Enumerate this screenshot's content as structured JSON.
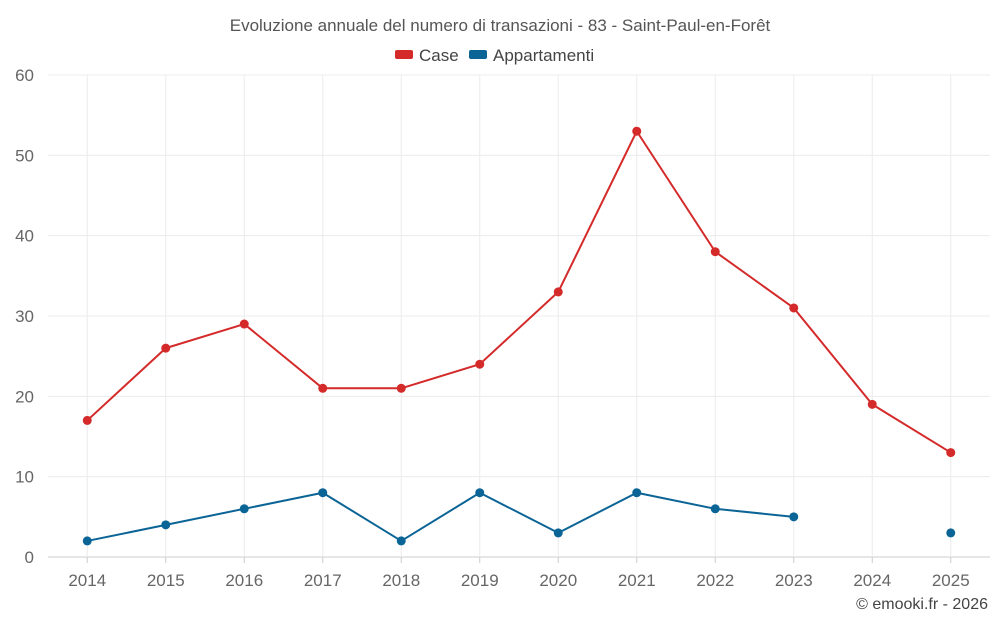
{
  "chart_data": {
    "type": "line",
    "title": "Evoluzione annuale del numero di transazioni - 83 - Saint-Paul-en-Forêt",
    "categories": [
      "2014",
      "2015",
      "2016",
      "2017",
      "2018",
      "2019",
      "2020",
      "2021",
      "2022",
      "2023",
      "2024",
      "2025"
    ],
    "ylim": [
      0,
      60
    ],
    "yticks": [
      0,
      10,
      20,
      30,
      40,
      50,
      60
    ],
    "grid": true,
    "legend_position": "top-center",
    "series": [
      {
        "name": "Case",
        "color": "#d42a2a",
        "values": [
          17,
          26,
          29,
          21,
          21,
          24,
          33,
          53,
          38,
          31,
          19,
          13
        ]
      },
      {
        "name": "Appartamenti",
        "color": "#0b6496",
        "values": [
          2,
          4,
          6,
          8,
          2,
          8,
          3,
          8,
          6,
          5,
          null,
          3
        ]
      }
    ]
  },
  "footer": "© emooki.fr - 2026"
}
